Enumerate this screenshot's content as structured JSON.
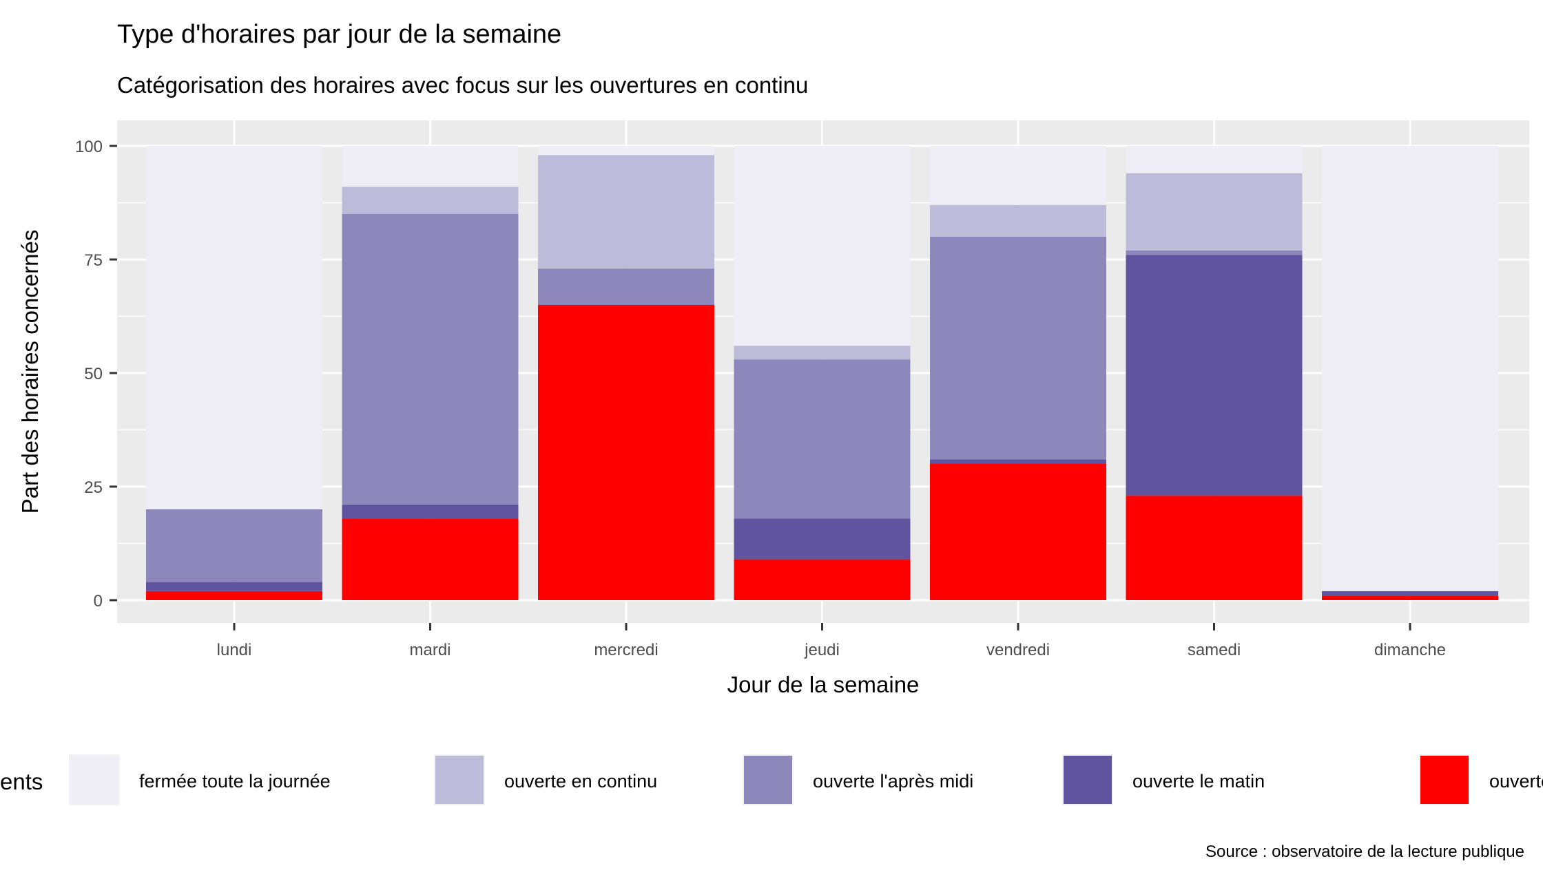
{
  "chart_data": {
    "type": "bar",
    "stacked": true,
    "title": "Type d'horaires par jour de la semaine",
    "subtitle": "Catégorisation des horaires avec focus sur les ouvertures en continu",
    "xlabel": "Jour de la semaine",
    "ylabel": "Part des horaires concernés",
    "caption": "Source : observatoire de la lecture publique",
    "categories": [
      "lundi",
      "mardi",
      "mercredi",
      "jeudi",
      "vendredi",
      "samedi",
      "dimanche"
    ],
    "ylim": [
      0,
      100
    ],
    "yticks": [
      0,
      25,
      50,
      75,
      100
    ],
    "grid": true,
    "legend_position": "bottom",
    "legend_title": "ents",
    "series": [
      {
        "name": "ouverte le m",
        "color": "#ff0000",
        "values": [
          2,
          18,
          65,
          9,
          30,
          23,
          1
        ]
      },
      {
        "name": "ouverte le matin",
        "color": "#6054a1",
        "values": [
          2,
          3,
          0,
          9,
          1,
          53,
          1
        ]
      },
      {
        "name": "ouverte l'après midi",
        "color": "#8d87bc",
        "values": [
          16,
          64,
          8,
          35,
          49,
          1,
          0
        ]
      },
      {
        "name": "ouverte en continu",
        "color": "#bdbbda",
        "values": [
          0,
          6,
          25,
          3,
          7,
          17,
          0
        ]
      },
      {
        "name": "fermée toute la journée",
        "color": "#efedf5",
        "values": [
          80,
          9,
          2,
          44,
          13,
          6,
          98
        ]
      }
    ],
    "legend_order": [
      4,
      3,
      2,
      1,
      0
    ]
  }
}
